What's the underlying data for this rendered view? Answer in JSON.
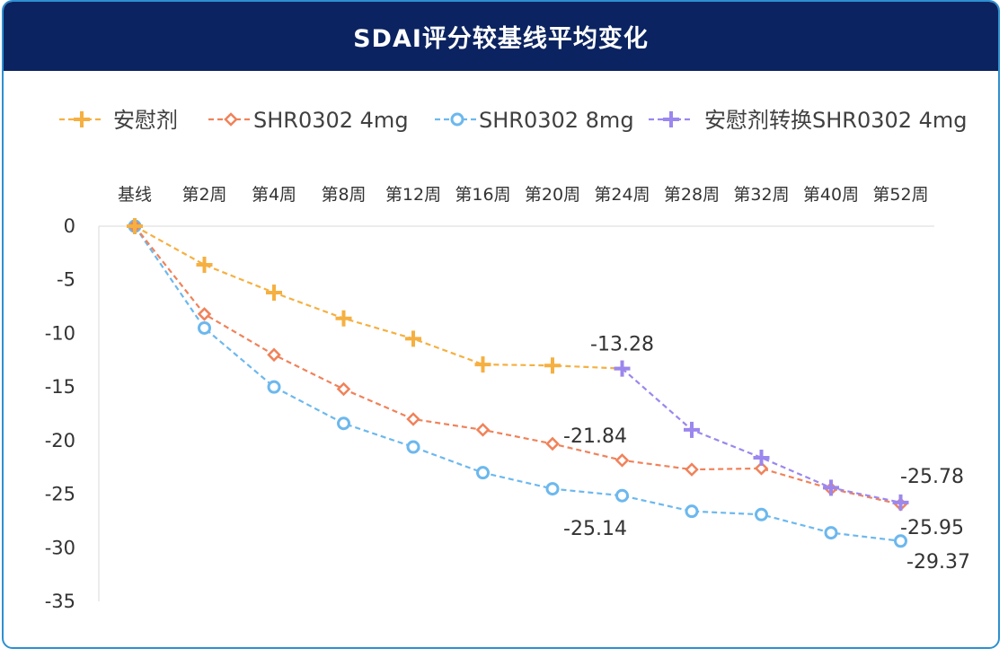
{
  "title": "SDAI评分较基线平均变化",
  "colors": {
    "placebo": "#f5b041",
    "shr4": "#f0825a",
    "shr8": "#6cb8ee",
    "switch": "#9b87ee",
    "header_bg": "#0b2360",
    "border": "#2e8fd0"
  },
  "chart_data": {
    "type": "line",
    "title": "SDAI评分较基线平均变化",
    "categories": [
      "基线",
      "第2周",
      "第4周",
      "第8周",
      "第12周",
      "第16周",
      "第20周",
      "第24周",
      "第28周",
      "第32周",
      "第40周",
      "第52周"
    ],
    "ylim": [
      -35,
      0
    ],
    "yticks": [
      0,
      -5,
      -10,
      -15,
      -20,
      -25,
      -30,
      -35
    ],
    "x_axis_position": "top",
    "legend_position": "top",
    "grid": false,
    "series": [
      {
        "name": "安慰剂",
        "marker": "plus",
        "color": "#f5b041",
        "values": [
          0,
          -3.6,
          -6.2,
          -8.6,
          -10.5,
          -12.9,
          -13.0,
          -13.28,
          null,
          null,
          null,
          null
        ]
      },
      {
        "name": "SHR0302 4mg",
        "marker": "diamond",
        "color": "#f0825a",
        "values": [
          0,
          -8.2,
          -12.0,
          -15.2,
          -18.0,
          -19.0,
          -20.3,
          -21.84,
          -22.7,
          -22.6,
          -24.5,
          -25.95
        ]
      },
      {
        "name": "SHR0302 8mg",
        "marker": "circle",
        "color": "#6cb8ee",
        "values": [
          0,
          -9.5,
          -15.0,
          -18.4,
          -20.6,
          -23.0,
          -24.5,
          -25.14,
          -26.6,
          -26.9,
          -28.6,
          -29.37
        ]
      },
      {
        "name": "安慰剂转换SHR0302 4mg",
        "marker": "plus",
        "color": "#9b87ee",
        "values": [
          null,
          null,
          null,
          null,
          null,
          null,
          null,
          -13.28,
          -19.0,
          -21.6,
          -24.4,
          -25.78
        ]
      }
    ],
    "annotations": [
      {
        "text": "-13.28",
        "category": "第24周",
        "value": -13.28
      },
      {
        "text": "-21.84",
        "category": "第24周",
        "value": -21.84
      },
      {
        "text": "-25.14",
        "category": "第24周",
        "value": -25.14
      },
      {
        "text": "-25.78",
        "category": "第52周",
        "value": -25.78
      },
      {
        "text": "-25.95",
        "category": "第52周",
        "value": -25.95
      },
      {
        "text": "-29.37",
        "category": "第52周",
        "value": -29.37
      }
    ]
  }
}
